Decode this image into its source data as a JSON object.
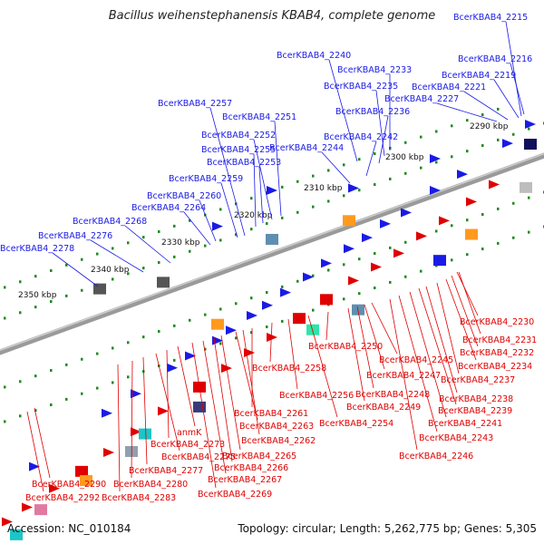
{
  "title": "Bacillus weihenstephanensis KBAB4, complete genome",
  "accession": "Accession: NC_010184",
  "summary": "Topology: circular; Length: 5,262,775 bp; Genes: 5,305",
  "colors": {
    "blue_label": "#1a1ae6",
    "red_label": "#e00000",
    "strand": "#888888"
  },
  "ticks": [
    "2290 kbp",
    "2300 kbp",
    "2310 kbp",
    "2320 kbp",
    "2330 kbp",
    "2340 kbp",
    "2350 kbp"
  ],
  "labels_top": [
    "BcerKBAB4_2215",
    "BcerKBAB4_2216",
    "BcerKBAB4_2219",
    "BcerKBAB4_2221",
    "BcerKBAB4_2227",
    "BcerKBAB4_2233",
    "BcerKBAB4_2235",
    "BcerKBAB4_2236",
    "BcerKBAB4_2240",
    "BcerKBAB4_2242",
    "BcerKBAB4_2244",
    "BcerKBAB4_2251",
    "BcerKBAB4_2252",
    "BcerKBAB4_2253",
    "BcerKBAB4_2255",
    "BcerKBAB4_2257",
    "BcerKBAB4_2259",
    "BcerKBAB4_2260",
    "BcerKBAB4_2264",
    "BcerKBAB4_2268",
    "BcerKBAB4_2276",
    "BcerKBAB4_2278"
  ],
  "labels_bottom": [
    "BcerKBAB4_2230",
    "BcerKBAB4_2231",
    "BcerKBAB4_2232",
    "BcerKBAB4_2234",
    "BcerKBAB4_2237",
    "BcerKBAB4_2238",
    "BcerKBAB4_2239",
    "BcerKBAB4_2241",
    "BcerKBAB4_2243",
    "BcerKBAB4_2246",
    "BcerKBAB4_2245",
    "BcerKBAB4_2247",
    "BcerKBAB4_2248",
    "BcerKBAB4_2249",
    "BcerKBAB4_2250",
    "BcerKBAB4_2254",
    "BcerKBAB4_2256",
    "BcerKBAB4_2258",
    "BcerKBAB4_2261",
    "BcerKBAB4_2262",
    "BcerKBAB4_2263",
    "BcerKBAB4_2265",
    "BcerKBAB4_2266",
    "BcerKBAB4_2267",
    "BcerKBAB4_2269",
    "anmK",
    "BcerKBAB4_2273",
    "BcerKBAB4_2275",
    "BcerKBAB4_2277",
    "BcerKBAB4_2280",
    "BcerKBAB4_2283",
    "BcerKBAB4_2290",
    "BcerKBAB4_2292"
  ]
}
